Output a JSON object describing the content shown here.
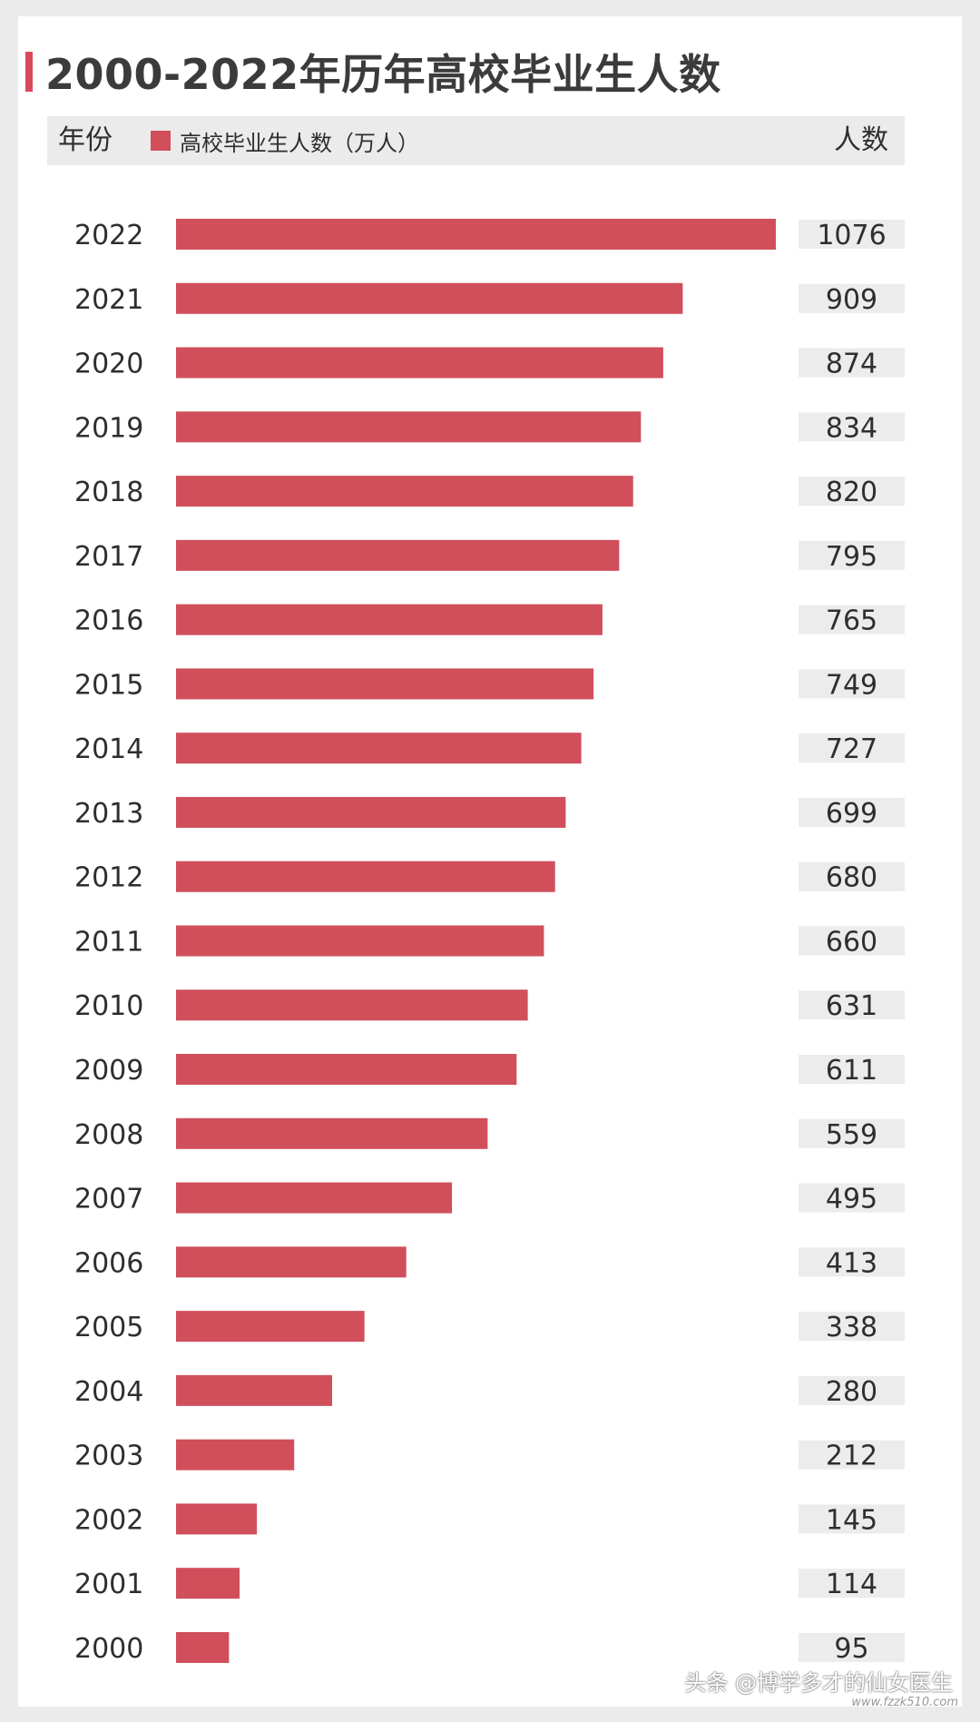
{
  "chart_data": {
    "type": "bar",
    "title": "2000-2022年历年高校毕业生人数",
    "header": {
      "year_label": "年份",
      "legend_label": "高校毕业生人数（万人）",
      "count_label": "人数"
    },
    "series": [
      {
        "name": "高校毕业生人数（万人）",
        "color": "#d04f5b"
      }
    ],
    "categories": [
      "2022",
      "2021",
      "2020",
      "2019",
      "2018",
      "2017",
      "2016",
      "2015",
      "2014",
      "2013",
      "2012",
      "2011",
      "2010",
      "2009",
      "2008",
      "2007",
      "2006",
      "2005",
      "2004",
      "2003",
      "2002",
      "2001",
      "2000"
    ],
    "values": [
      1076,
      909,
      874,
      834,
      820,
      795,
      765,
      749,
      727,
      699,
      680,
      660,
      631,
      611,
      559,
      495,
      413,
      338,
      280,
      212,
      145,
      114,
      95
    ],
    "orientation": "horizontal",
    "grid": false
  },
  "watermark": {
    "author": "头条 @博学多才的仙女医生",
    "site": "www.fzzk510.com"
  }
}
